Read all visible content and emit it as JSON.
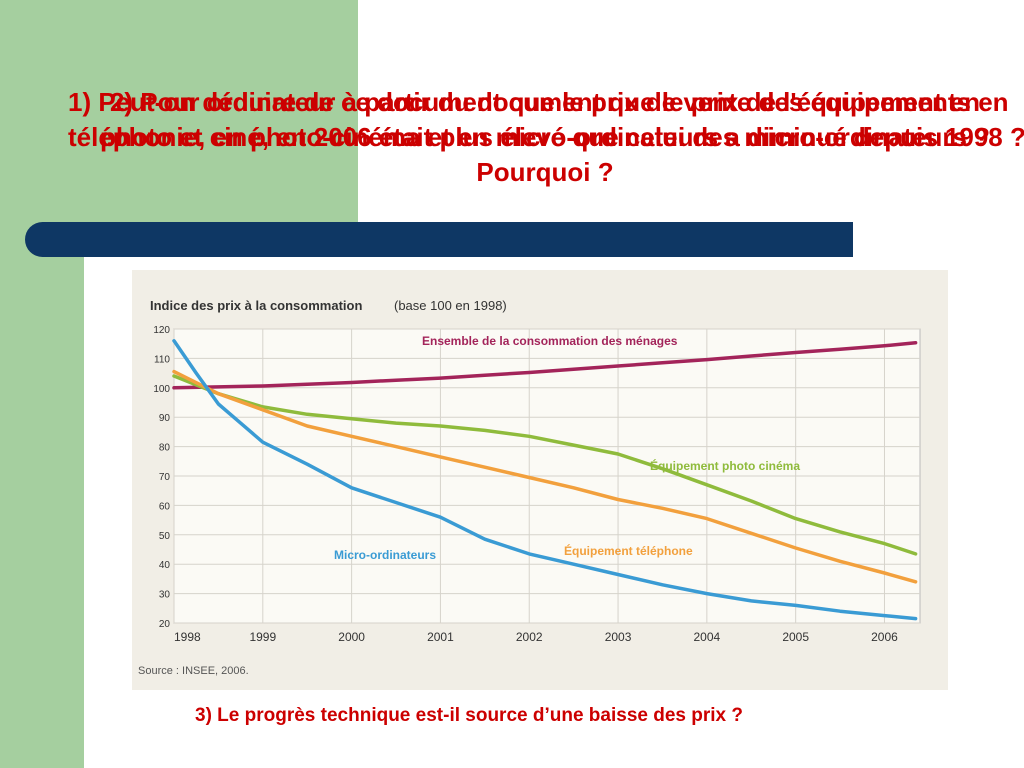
{
  "slide": {
    "question1": "1) Peut-on déduire de ce document que le prix de vente des équipements en téléphonie, en photo-cinéma et en micro-ordinateurs a diminué depuis 1998 ?",
    "question2": "2) Pour ordinateur à partir du document que le prix de l'équipement en photo et ciné, en 2006 était plus élevé que celui des micro-ordinateurs ? Pourquoi ?",
    "question3": "3) Le progrès technique est-il source d’une baisse des prix ?",
    "colors": {
      "sidebar": "#a5cf9f",
      "bar": "#0e3764",
      "question_text": "#cc0000"
    }
  },
  "chart_data": {
    "type": "line",
    "title": "Indice des prix à la consommation",
    "subtitle": "(base 100 en 1998)",
    "source": "Source : INSEE, 2006.",
    "xlim": [
      1998,
      2006.4
    ],
    "ylim": [
      20,
      120
    ],
    "y_ticks": [
      20,
      30,
      40,
      50,
      60,
      70,
      80,
      90,
      100,
      110,
      120
    ],
    "x_ticks": [
      "1998",
      "1999",
      "2000",
      "2001",
      "2002",
      "2003",
      "2004",
      "2005",
      "2006"
    ],
    "grid": true,
    "series": [
      {
        "name": "Ensemble de la consommation des ménages",
        "color": "#a3245a",
        "points": [
          [
            1998,
            100
          ],
          [
            1998.5,
            100.3
          ],
          [
            1999,
            100.6
          ],
          [
            1999.5,
            101.2
          ],
          [
            2000,
            101.8
          ],
          [
            2000.5,
            102.6
          ],
          [
            2001,
            103.3
          ],
          [
            2001.5,
            104.3
          ],
          [
            2002,
            105.2
          ],
          [
            2002.5,
            106.3
          ],
          [
            2003,
            107.4
          ],
          [
            2003.5,
            108.5
          ],
          [
            2004,
            109.6
          ],
          [
            2004.5,
            110.8
          ],
          [
            2005,
            112.0
          ],
          [
            2005.5,
            113.1
          ],
          [
            2006,
            114.3
          ],
          [
            2006.35,
            115.3
          ]
        ]
      },
      {
        "name": "Équipement photo cinéma",
        "color": "#8fbb3c",
        "points": [
          [
            1998,
            104.0
          ],
          [
            1998.5,
            98.0
          ],
          [
            1999,
            93.5
          ],
          [
            1999.5,
            91.0
          ],
          [
            2000,
            89.5
          ],
          [
            2000.5,
            88.0
          ],
          [
            2001,
            87.0
          ],
          [
            2001.5,
            85.5
          ],
          [
            2002,
            83.5
          ],
          [
            2002.5,
            80.5
          ],
          [
            2003,
            77.5
          ],
          [
            2003.5,
            72.5
          ],
          [
            2004,
            67.0
          ],
          [
            2004.5,
            61.5
          ],
          [
            2005,
            55.5
          ],
          [
            2005.5,
            51.0
          ],
          [
            2006,
            47.0
          ],
          [
            2006.35,
            43.5
          ]
        ]
      },
      {
        "name": "Équipement téléphone",
        "color": "#f2a03d",
        "points": [
          [
            1998,
            105.5
          ],
          [
            1998.5,
            98.0
          ],
          [
            1999,
            92.5
          ],
          [
            1999.5,
            87.0
          ],
          [
            2000,
            83.5
          ],
          [
            2000.5,
            80.0
          ],
          [
            2001,
            76.5
          ],
          [
            2001.5,
            73.0
          ],
          [
            2002,
            69.5
          ],
          [
            2002.5,
            66.0
          ],
          [
            2003,
            62.0
          ],
          [
            2003.5,
            59.0
          ],
          [
            2004,
            55.5
          ],
          [
            2004.5,
            50.5
          ],
          [
            2005,
            45.5
          ],
          [
            2005.5,
            41.0
          ],
          [
            2006,
            37.0
          ],
          [
            2006.35,
            34.0
          ]
        ]
      },
      {
        "name": "Micro-ordinateurs",
        "color": "#3a9bd4",
        "points": [
          [
            1998,
            116.0
          ],
          [
            1998.25,
            105.0
          ],
          [
            1998.5,
            94.5
          ],
          [
            1998.75,
            88.0
          ],
          [
            1999,
            81.5
          ],
          [
            1999.5,
            74.0
          ],
          [
            2000,
            66.0
          ],
          [
            2000.5,
            61.0
          ],
          [
            2001,
            56.0
          ],
          [
            2001.5,
            48.5
          ],
          [
            2002,
            43.5
          ],
          [
            2002.5,
            40.0
          ],
          [
            2003,
            36.5
          ],
          [
            2003.5,
            33.0
          ],
          [
            2004,
            30.0
          ],
          [
            2004.5,
            27.5
          ],
          [
            2005,
            26.0
          ],
          [
            2005.5,
            24.0
          ],
          [
            2006,
            22.5
          ],
          [
            2006.35,
            21.5
          ]
        ]
      }
    ],
    "annotations": [
      {
        "text": "Ensemble de la consommation des ménages",
        "series": "Ensemble de la consommation des ménages"
      },
      {
        "text": "Équipement photo cinéma",
        "series": "Équipement photo cinéma"
      },
      {
        "text": "Équipement téléphone",
        "series": "Équipement téléphone"
      },
      {
        "text": "Micro-ordinateurs",
        "series": "Micro-ordinateurs"
      }
    ]
  }
}
